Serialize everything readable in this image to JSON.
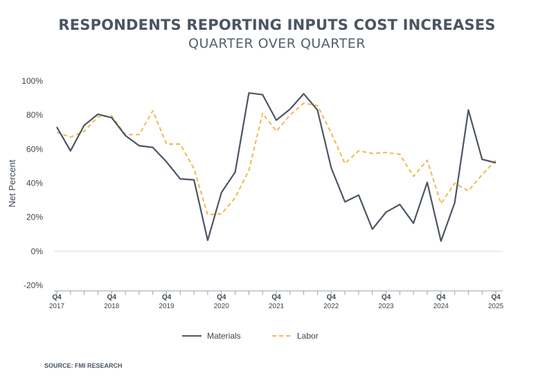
{
  "chart_data": {
    "type": "line",
    "title": "RESPONDENTS REPORTING INPUTS COST INCREASES",
    "subtitle": "QUARTER OVER QUARTER",
    "xlabel": "",
    "ylabel": "Net Percent",
    "ylim": [
      -20,
      100
    ],
    "y_ticks": [
      100,
      80,
      60,
      40,
      20,
      0,
      -20
    ],
    "y_tick_labels": [
      "100%",
      "80%",
      "60%",
      "40%",
      "20%",
      "0%",
      "-20%"
    ],
    "x_count": 33,
    "x_tick_labels": [
      {
        "index": 0,
        "quarter": "Q4",
        "year": "2017"
      },
      {
        "index": 4,
        "quarter": "Q4",
        "year": "2018"
      },
      {
        "index": 8,
        "quarter": "Q4",
        "year": "2019"
      },
      {
        "index": 12,
        "quarter": "Q4",
        "year": "2020"
      },
      {
        "index": 16,
        "quarter": "Q4",
        "year": "2021"
      },
      {
        "index": 20,
        "quarter": "Q4",
        "year": "2022"
      },
      {
        "index": 24,
        "quarter": "Q4",
        "year": "2023"
      },
      {
        "index": 28,
        "quarter": "Q4",
        "year": "2024"
      },
      {
        "index": 32,
        "quarter": "Q4",
        "year": "2025"
      }
    ],
    "series": [
      {
        "name": "Materials",
        "color": "#4b5563",
        "style": "solid",
        "values": [
          73,
          59,
          74,
          80.5,
          78.5,
          68,
          62,
          61,
          52.5,
          42.5,
          42,
          6.5,
          34.5,
          46.5,
          93,
          92,
          77,
          83.5,
          92.5,
          83,
          49,
          29,
          33,
          13,
          23,
          27.5,
          16.5,
          40.5,
          6,
          28.5,
          83,
          54,
          52
        ]
      },
      {
        "name": "Labor",
        "color": "#f2b84e",
        "style": "dashed",
        "values": [
          70,
          67,
          70.5,
          79,
          79.5,
          68.5,
          68.5,
          82.5,
          63,
          63,
          48.5,
          21.5,
          22,
          31.5,
          47.5,
          81,
          70.5,
          80,
          87,
          85.5,
          69.5,
          51.5,
          59,
          57.5,
          58,
          57,
          44,
          53.5,
          28,
          40,
          35.5,
          45,
          53.5
        ]
      }
    ],
    "legend_position": "bottom-center",
    "grid": false
  },
  "source": "SOURCE: FMI RESEARCH"
}
